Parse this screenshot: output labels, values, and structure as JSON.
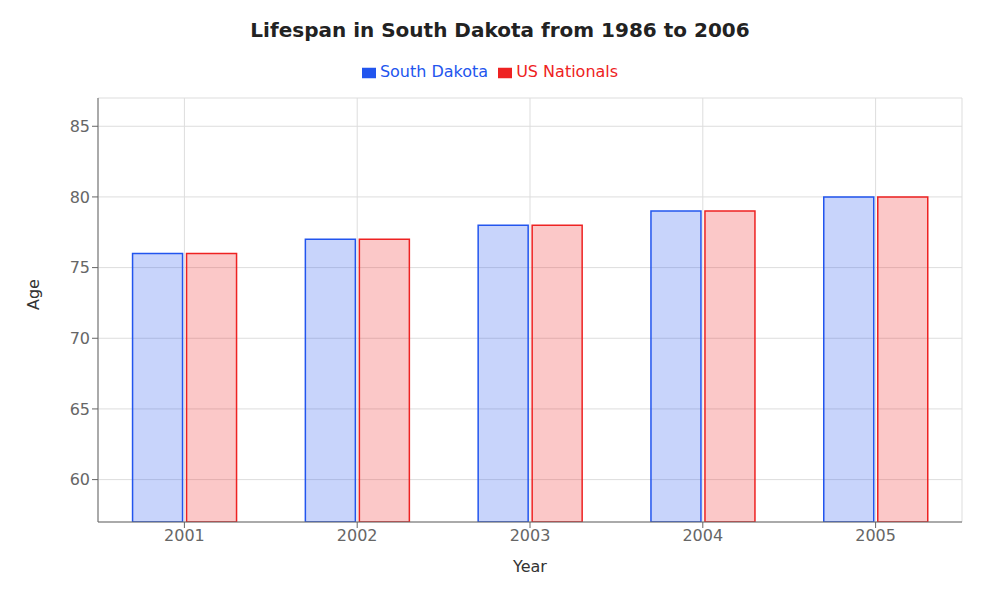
{
  "chart_data": {
    "type": "bar",
    "title": "Lifespan in South Dakota from 1986 to 2006",
    "xlabel": "Year",
    "ylabel": "Age",
    "categories": [
      "2001",
      "2002",
      "2003",
      "2004",
      "2005"
    ],
    "series": [
      {
        "name": "South Dakota",
        "color": "#2255ee",
        "values": [
          76,
          77,
          78,
          79,
          80
        ]
      },
      {
        "name": "US Nationals",
        "color": "#ee2222",
        "values": [
          76,
          77,
          78,
          79,
          80
        ]
      }
    ],
    "ylim": [
      57,
      87
    ],
    "yticks": [
      60,
      65,
      70,
      75,
      80,
      85
    ],
    "grid": true,
    "legend": "top"
  }
}
